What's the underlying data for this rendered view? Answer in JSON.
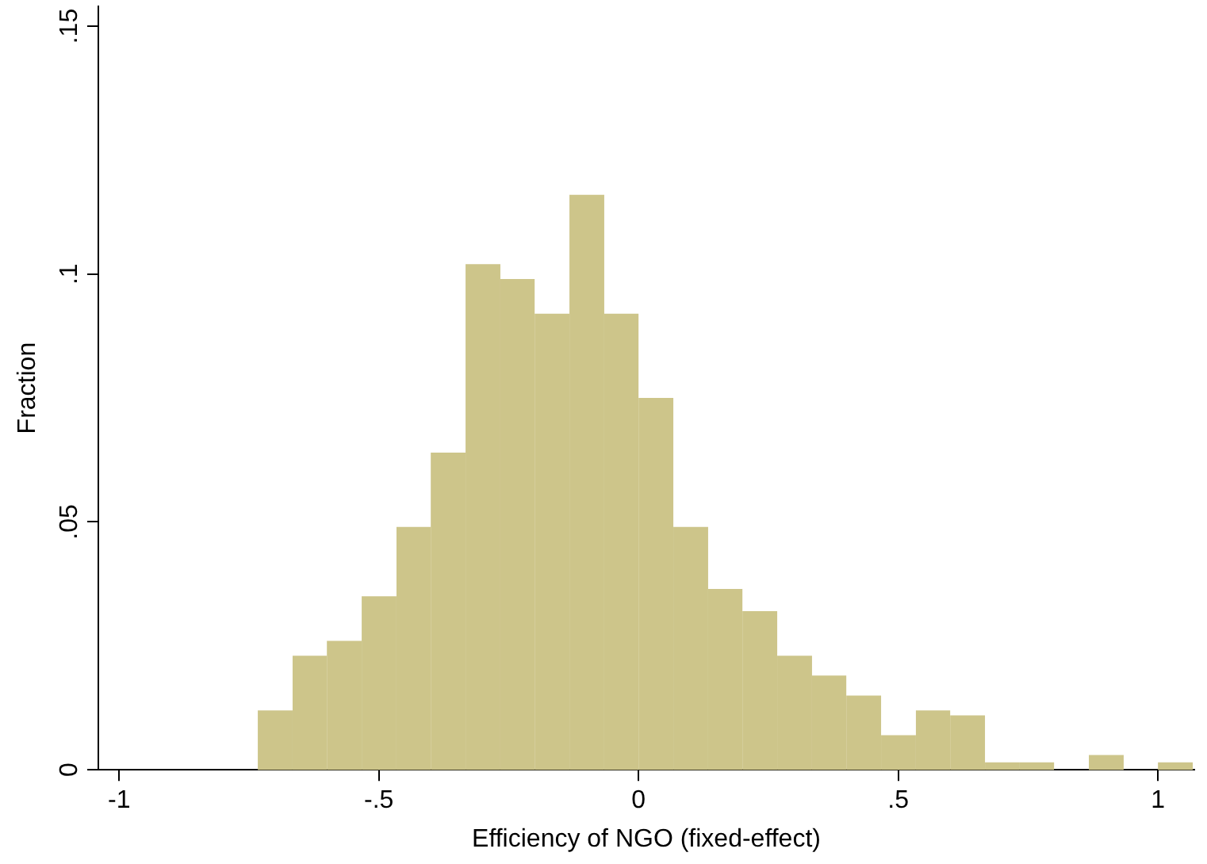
{
  "chart_data": {
    "type": "histogram",
    "xlabel": "Efficiency of NGO (fixed-effect)",
    "ylabel": "Fraction",
    "bins": [
      -0.733,
      -0.666,
      -0.6,
      -0.533,
      -0.466,
      -0.4,
      -0.333,
      -0.266,
      -0.2,
      -0.133,
      -0.066,
      0,
      0.067,
      0.134,
      0.2,
      0.267,
      0.334,
      0.4,
      0.467,
      0.534,
      0.6,
      0.667,
      0.734,
      0.8,
      0.867,
      0.934,
      1,
      1.067
    ],
    "values": [
      0.012,
      0.023,
      0.026,
      0.035,
      0.049,
      0.064,
      0.102,
      0.099,
      0.092,
      0.116,
      0.092,
      0.075,
      0.049,
      0.0365,
      0.032,
      0.023,
      0.019,
      0.015,
      0.007,
      0.012,
      0.011,
      0.0015,
      0.0015,
      0,
      0.003,
      0,
      0.0015
    ],
    "color": "#cdc58a",
    "xlim": [
      -1.04,
      1.07
    ],
    "ylim": [
      0,
      0.154
    ],
    "xticks": [
      -1,
      {
        "value": -0.5,
        "label": "-.5"
      },
      0,
      {
        "value": 0.5,
        "label": ".5"
      },
      1
    ],
    "yticks": [
      0,
      {
        "value": 0.05,
        "label": ".05"
      },
      {
        "value": 0.1,
        "label": ".1"
      },
      {
        "value": 0.15,
        "label": ".15"
      }
    ],
    "grid": false,
    "legend": false
  }
}
